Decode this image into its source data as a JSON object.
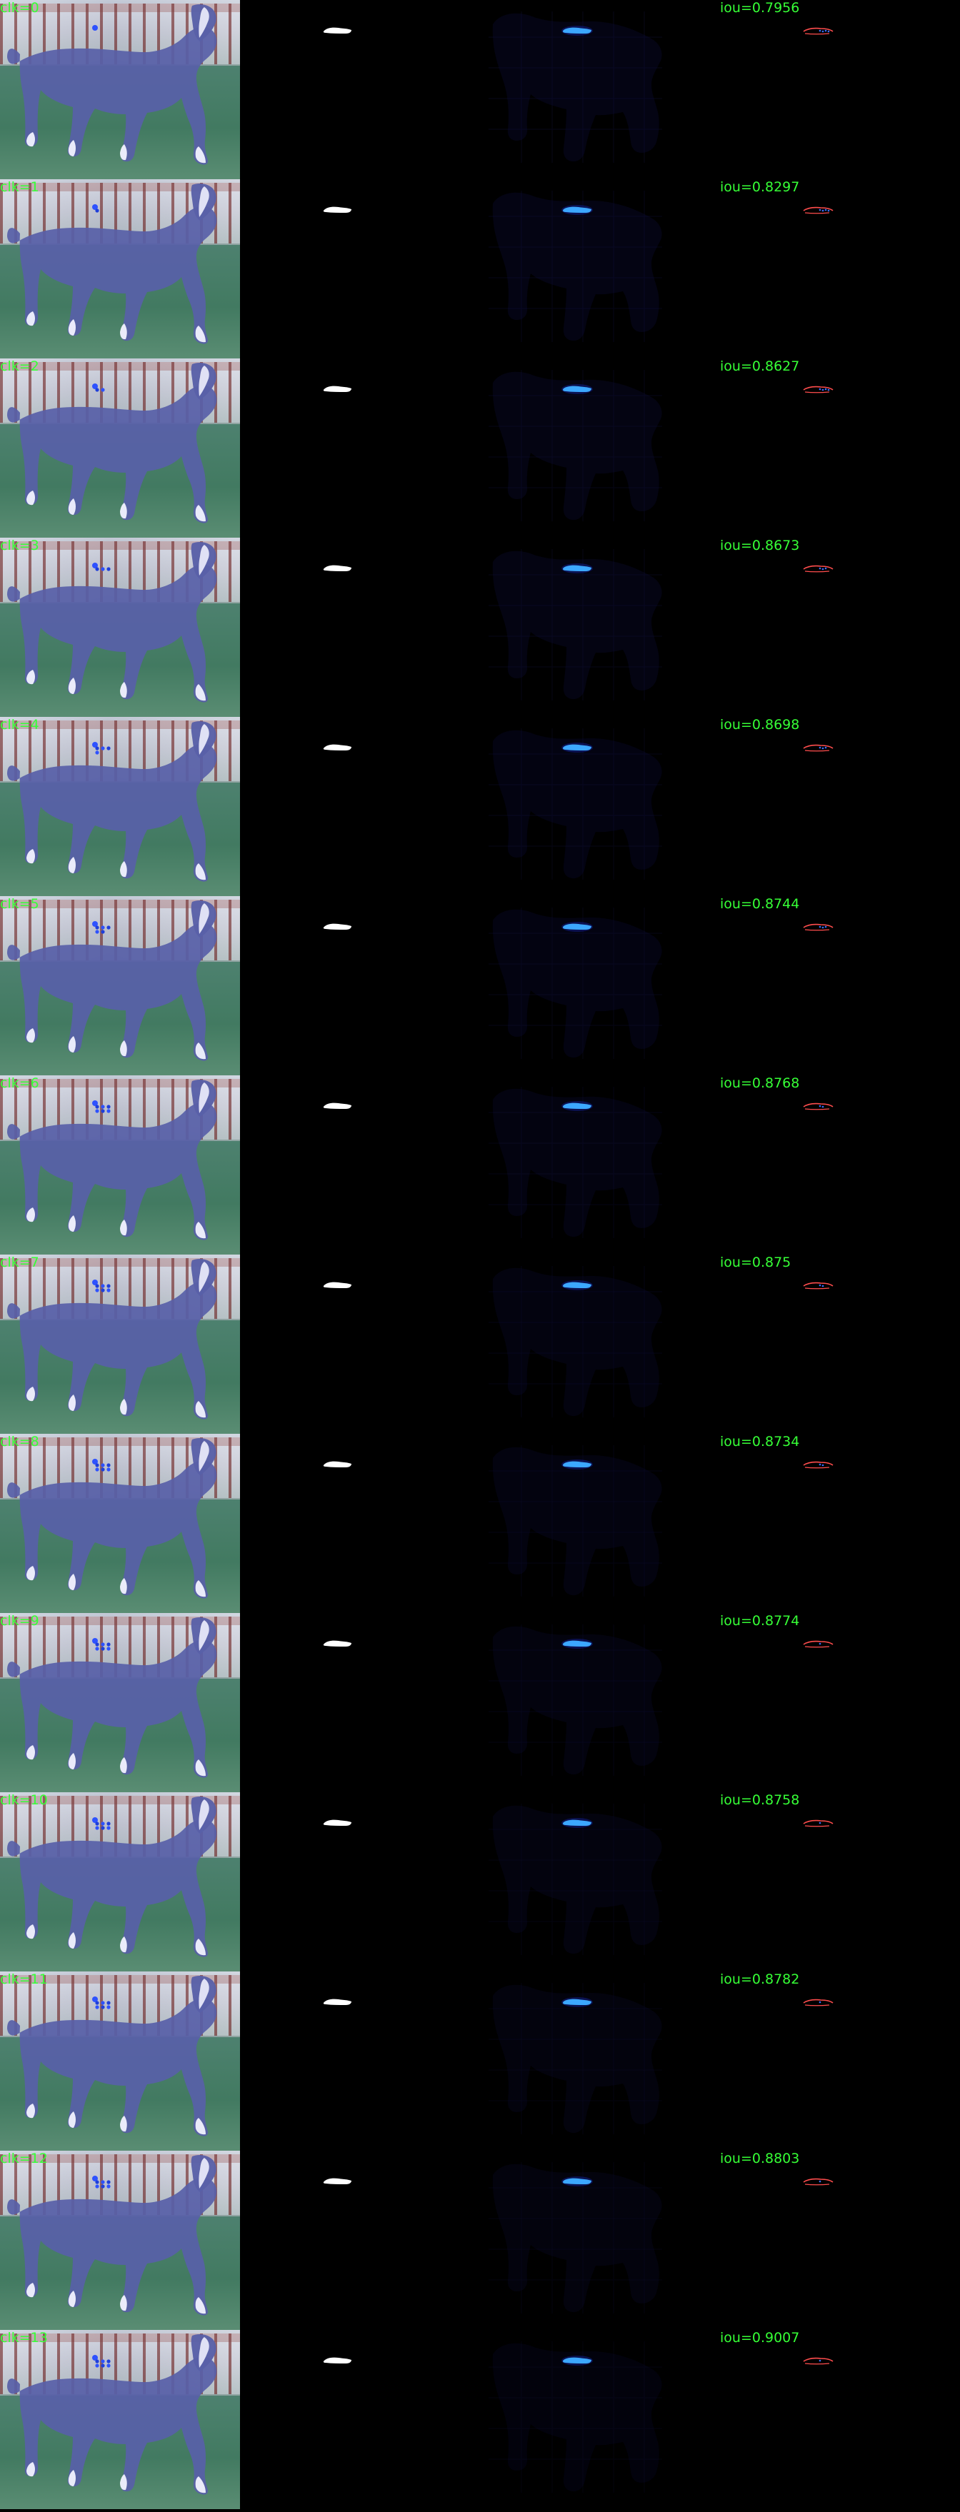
{
  "rows": [
    {
      "click_label": "clk=0",
      "iou_label": "iou=0.7956",
      "click_marks": [
        {
          "color": "#2e52ff"
        }
      ]
    },
    {
      "click_label": "clk=1",
      "iou_label": "iou=0.8297",
      "click_marks": [
        {
          "color": "#2e52ff"
        }
      ]
    },
    {
      "click_label": "clk=2",
      "iou_label": "iou=0.8627",
      "click_marks": [
        {
          "color": "#2e52ff"
        }
      ]
    },
    {
      "click_label": "clk=3",
      "iou_label": "iou=0.8673",
      "click_marks": [
        {
          "color": "#2e52ff"
        }
      ]
    },
    {
      "click_label": "clk=4",
      "iou_label": "iou=0.8698",
      "click_marks": [
        {
          "color": "#2e52ff"
        }
      ]
    },
    {
      "click_label": "clk=5",
      "iou_label": "iou=0.8744",
      "click_marks": [
        {
          "color": "#2e52ff"
        }
      ]
    },
    {
      "click_label": "clk=6",
      "iou_label": "iou=0.8768",
      "click_marks": [
        {
          "color": "#2e52ff"
        }
      ]
    },
    {
      "click_label": "clk=7",
      "iou_label": "iou=0.875",
      "click_marks": [
        {
          "color": "#2e52ff"
        }
      ]
    },
    {
      "click_label": "clk=8",
      "iou_label": "iou=0.8734",
      "click_marks": [
        {
          "color": "#2e52ff"
        }
      ]
    },
    {
      "click_label": "clk=9",
      "iou_label": "iou=0.8774",
      "click_marks": [
        {
          "color": "#2e52ff"
        }
      ]
    },
    {
      "click_label": "clk=10",
      "iou_label": "iou=0.8758",
      "click_marks": [
        {
          "color": "#2e52ff"
        }
      ]
    },
    {
      "click_label": "clk=11",
      "iou_label": "iou=0.8782",
      "click_marks": [
        {
          "color": "#2e52ff"
        }
      ]
    },
    {
      "click_label": "clk=12",
      "iou_label": "iou=0.8803",
      "click_marks": [
        {
          "color": "#2e52ff"
        }
      ]
    },
    {
      "click_label": "clk=13",
      "iou_label": "iou=0.9007",
      "click_marks": [
        {
          "color": "#2e52ff"
        }
      ]
    }
  ],
  "colors": {
    "label": "#36ff36",
    "mask": "#ffffff",
    "probability": "#3ca8ff",
    "error_red": "#ff4d4d",
    "error_blue": "#3a6dff",
    "horse": "#5860a8",
    "horse_highlight": "#f2f2ff"
  }
}
